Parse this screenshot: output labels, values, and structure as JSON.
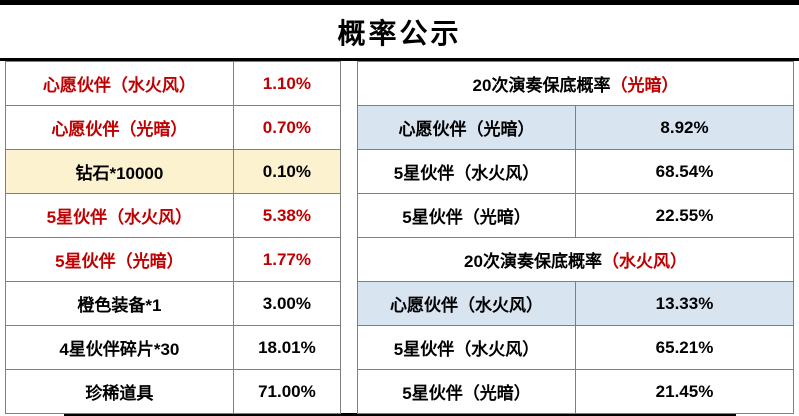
{
  "title": "概率公示",
  "colors": {
    "red": "#c00000",
    "cream": "#fdf2d0",
    "blue": "#d9e4f1"
  },
  "left_table": {
    "rows": [
      {
        "name": "心愿伙伴（水火风）",
        "value": "1.10%"
      },
      {
        "name": "心愿伙伴（光暗）",
        "value": "0.70%"
      },
      {
        "name": "钻石*10000",
        "value": "0.10%"
      },
      {
        "name": "5星伙伴（水火风）",
        "value": "5.38%"
      },
      {
        "name": "5星伙伴（光暗）",
        "value": "1.77%"
      },
      {
        "name": "橙色装备*1",
        "value": "3.00%"
      },
      {
        "name": "4星伙伴碎片*30",
        "value": "18.01%"
      },
      {
        "name": "珍稀道具",
        "value": "71.00%"
      }
    ]
  },
  "right_table": {
    "sections": [
      {
        "header_prefix": "20次演奏保底概率",
        "header_red": "（光暗）",
        "rows": [
          {
            "name": "心愿伙伴（光暗）",
            "value": "8.92%"
          },
          {
            "name": "5星伙伴（水火风）",
            "value": "68.54%"
          },
          {
            "name": "5星伙伴（光暗）",
            "value": "22.55%"
          }
        ]
      },
      {
        "header_prefix": "20次演奏保底概率",
        "header_red": "（水火风）",
        "rows": [
          {
            "name": "心愿伙伴（水火风）",
            "value": "13.33%"
          },
          {
            "name": "5星伙伴（水火风）",
            "value": "65.21%"
          },
          {
            "name": "5星伙伴（光暗）",
            "value": "21.45%"
          }
        ]
      }
    ]
  }
}
